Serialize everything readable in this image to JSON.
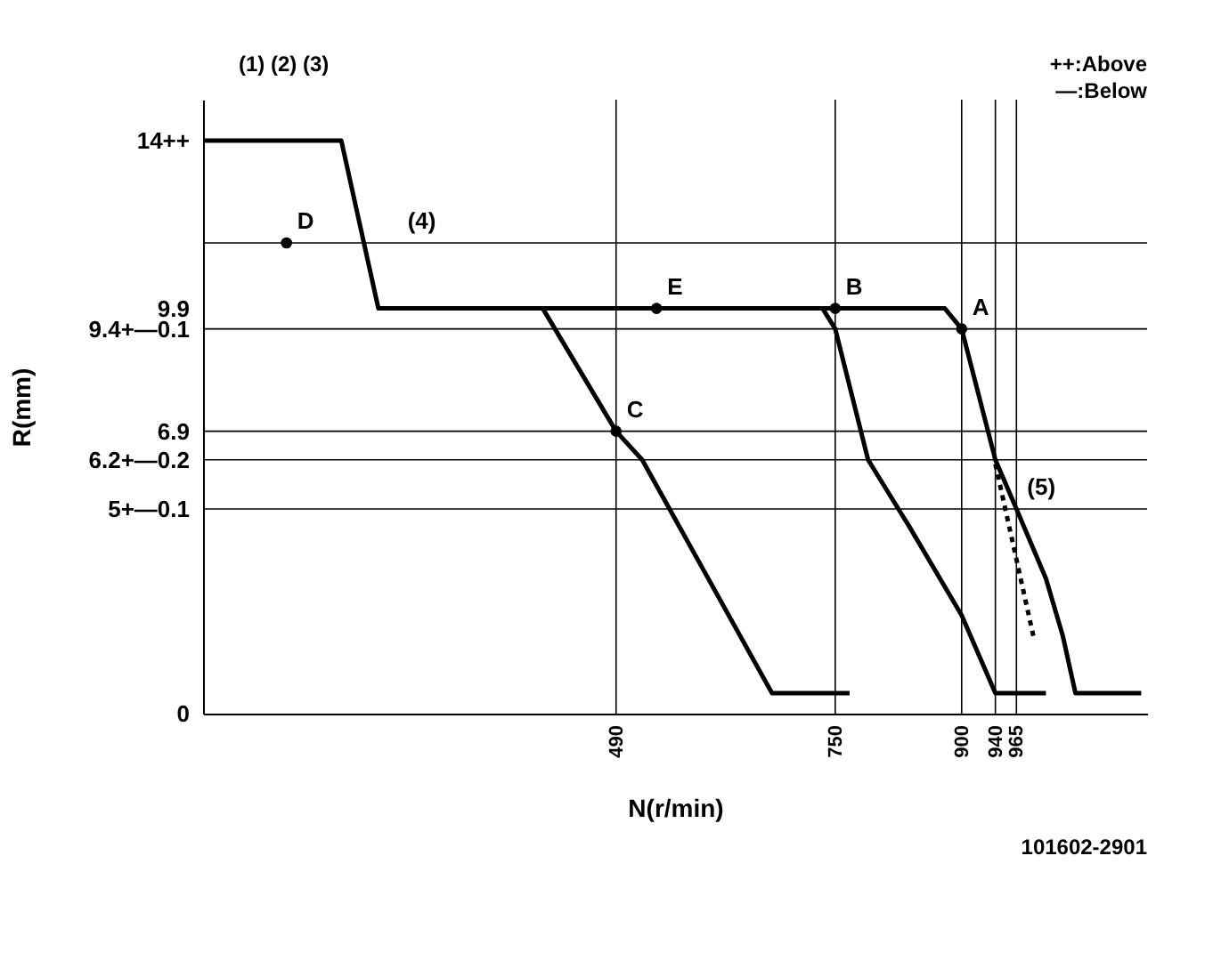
{
  "chart_data": {
    "type": "line",
    "xlabel": "N(r/min)",
    "ylabel": "R(mm)",
    "xlim": [
      0,
      1120
    ],
    "ylim": [
      0,
      15
    ],
    "xticks": [
      490,
      750,
      900,
      940,
      965
    ],
    "yticks": [
      0,
      {
        "value": 5,
        "label": "5+—0.1"
      },
      {
        "value": 6.2,
        "label": "6.2+—0.2"
      },
      6.9,
      {
        "value": 9.4,
        "label": "9.4+—0.1"
      },
      9.9,
      {
        "value": 14,
        "label": "14++"
      }
    ],
    "series": [
      {
        "color": "#000000",
        "x": [
          0,
          164,
          208,
          880,
          900,
          940,
          965,
          1000,
          1020,
          1035,
          1113
        ],
        "values": [
          14,
          14,
          9.9,
          9.9,
          9.4,
          6.2,
          5,
          3.3,
          1.9,
          0.5,
          0.5
        ]
      },
      {
        "color": "#000000",
        "x": [
          403,
          490,
          521,
          675,
          767
        ],
        "values": [
          9.9,
          6.9,
          6.2,
          0.5,
          0.5
        ]
      },
      {
        "color": "#000000",
        "x": [
          735,
          750,
          789,
          837,
          900,
          940,
          1000
        ],
        "values": [
          9.9,
          9.4,
          6.2,
          4.6,
          2.4,
          0.5,
          0.5
        ]
      },
      {
        "color": "#000000",
        "line_style": "dotted",
        "x": [
          940,
          985
        ],
        "values": [
          6.1,
          1.9
        ]
      },
      {
        "type": "scatter",
        "color": "#000000",
        "marker": "circle",
        "x": [
          99,
          538,
          750,
          900,
          490
        ],
        "values": [
          11.5,
          9.9,
          9.9,
          9.4,
          6.9
        ]
      }
    ],
    "ref_lines": [
      {
        "axis": "y",
        "value": 11.5
      },
      {
        "axis": "y",
        "value": 9.4
      },
      {
        "axis": "y",
        "value": 6.9
      },
      {
        "axis": "y",
        "value": 6.2
      },
      {
        "axis": "y",
        "value": 5
      },
      {
        "axis": "x",
        "value": 490
      },
      {
        "axis": "x",
        "value": 750
      },
      {
        "axis": "x",
        "value": 900
      },
      {
        "axis": "x",
        "value": 940
      },
      {
        "axis": "x",
        "value": 965
      }
    ],
    "annotations": [
      "(1) (2) (3)",
      "++:Above",
      "—:Below",
      {
        "text": "(4)",
        "x": 230,
        "y": 11.5
      },
      {
        "text": "D",
        "x": 99,
        "y": 11.5
      },
      {
        "text": "E",
        "x": 538,
        "y": 9.9
      },
      {
        "text": "B",
        "x": 750,
        "y": 9.9
      },
      {
        "text": "A",
        "x": 900,
        "y": 9.4
      },
      {
        "text": "C",
        "x": 490,
        "y": 6.9
      },
      {
        "text": "(5)",
        "x": 965,
        "y": 5
      },
      "101602-2901"
    ]
  }
}
